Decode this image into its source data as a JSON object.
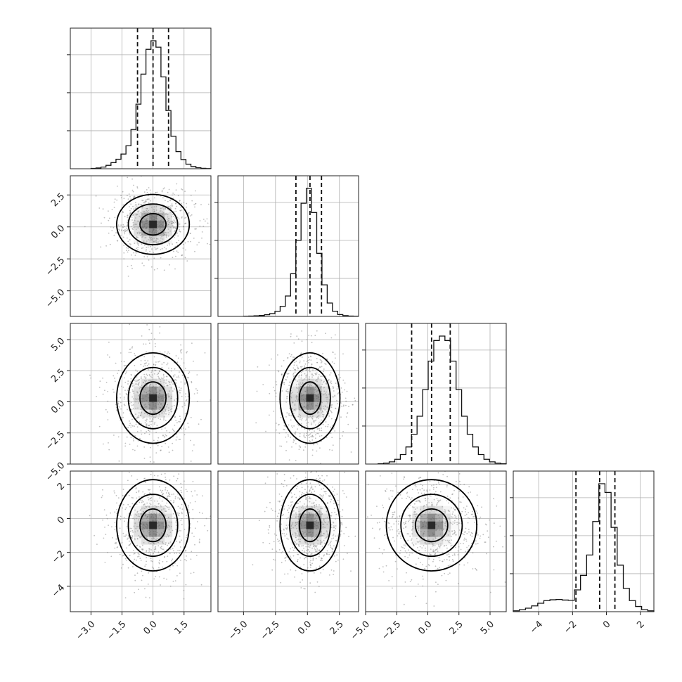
{
  "chart_data": {
    "type": "corner",
    "title": "",
    "n_params": 4,
    "labels": [
      "",
      "",
      "",
      ""
    ],
    "ranges": [
      [
        -4.0,
        2.8
      ],
      [
        -7.0,
        4.0
      ],
      [
        -5.0,
        6.3
      ],
      [
        -5.5,
        2.8
      ]
    ],
    "ticks": [
      [
        -3.0,
        -1.5,
        0.0,
        1.5
      ],
      [
        -5.0,
        -2.5,
        0.0,
        2.5
      ],
      [
        -5.0,
        -2.5,
        0.0,
        2.5,
        5.0
      ],
      [
        -4,
        -2,
        0,
        2
      ]
    ],
    "tick_labels": [
      [
        "−3.0",
        "−1.5",
        "0.0",
        "1.5"
      ],
      [
        "−5.0",
        "−2.5",
        "0.0",
        "2.5"
      ],
      [
        "−5.0",
        "−2.5",
        "0.0",
        "2.5",
        "5.0"
      ],
      [
        "−4",
        "−2",
        "0",
        "2"
      ]
    ],
    "quantiles": [
      [
        -0.75,
        0.0,
        0.75
      ],
      [
        -0.9,
        0.2,
        1.1
      ],
      [
        -1.3,
        0.3,
        1.8
      ],
      [
        -1.8,
        -0.4,
        0.5
      ]
    ],
    "histograms": [
      {
        "bin_edges_range": [
          -3.0,
          2.8
        ],
        "counts": [
          2,
          5,
          11,
          22,
          40,
          62,
          96,
          150,
          256,
          422,
          618,
          780,
          836,
          794,
          600,
          380,
          212,
          112,
          60,
          30,
          14,
          7,
          3,
          1
        ]
      },
      {
        "bin_edges_range": [
          -5.0,
          4.0
        ],
        "counts": [
          1,
          2,
          3,
          5,
          9,
          15,
          27,
          54,
          110,
          230,
          410,
          610,
          690,
          560,
          340,
          170,
          72,
          28,
          10,
          4,
          2,
          1
        ]
      },
      {
        "bin_edges_range": [
          -4.0,
          6.3
        ],
        "counts": [
          2,
          6,
          14,
          30,
          60,
          108,
          188,
          302,
          470,
          650,
          780,
          808,
          780,
          650,
          470,
          302,
          188,
          108,
          60,
          30,
          14,
          6,
          2
        ]
      },
      {
        "bin_edges_range": [
          -5.5,
          2.8
        ],
        "counts": [
          6,
          14,
          24,
          40,
          58,
          76,
          82,
          84,
          80,
          78,
          150,
          250,
          390,
          620,
          880,
          820,
          580,
          320,
          160,
          76,
          36,
          14,
          6
        ]
      }
    ],
    "grid": true,
    "legend": "none"
  }
}
